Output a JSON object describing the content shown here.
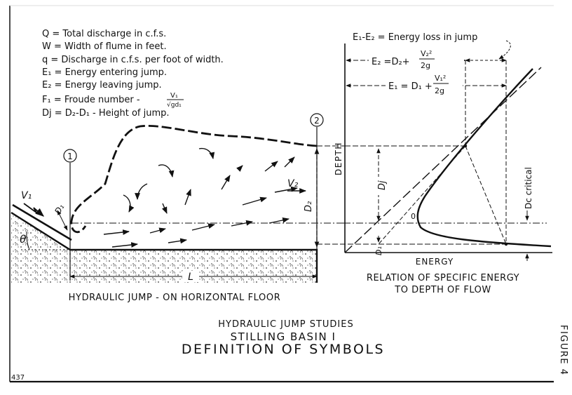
{
  "legend": {
    "q_total": "Q = Total discharge in c.f.s.",
    "w_width": "W = Width of flume in feet.",
    "q_unit": "q = Discharge in c.f.s. per foot of width.",
    "e1": "E₁ = Energy entering jump.",
    "e2": "E₂ = Energy leaving jump.",
    "froude_prefix": "F₁ = Froude number -",
    "froude_num": "V₁",
    "froude_den": "√gd₁",
    "dj": "Dj = D₂-D₁ - Height of jump."
  },
  "jump": {
    "section_1": "1",
    "section_2": "2",
    "v1": "V₁",
    "v2": "V₂",
    "d1": "D₁",
    "d2": "D₂",
    "theta": "θ",
    "length": "L",
    "caption": "HYDRAULIC JUMP - ON HORIZONTAL FLOOR"
  },
  "energy_plot": {
    "energy_loss": "E₁-E₂ = Energy loss in jump",
    "e2_prefix": "E₂ =D₂+",
    "e2_num": "V₂²",
    "e2_den": "2g",
    "e1_prefix": "E₁ = D₁ +",
    "e1_num": "V₁²",
    "e1_den": "2g",
    "depth_label": "DEPTH",
    "energy_label": "ENERGY",
    "dj": "Dj",
    "d1": "D₁",
    "origin": "0",
    "dc_critical": "Dc critical",
    "caption_line1": "RELATION OF SPECIFIC ENERGY",
    "caption_line2": "TO DEPTH OF FLOW"
  },
  "title": {
    "line1": "HYDRAULIC  JUMP  STUDIES",
    "line2": "STILLING  BASIN I",
    "line3": "DEFINITION  OF  SYMBOLS"
  },
  "page_number": "437",
  "figure_label": "FIGURE 4"
}
